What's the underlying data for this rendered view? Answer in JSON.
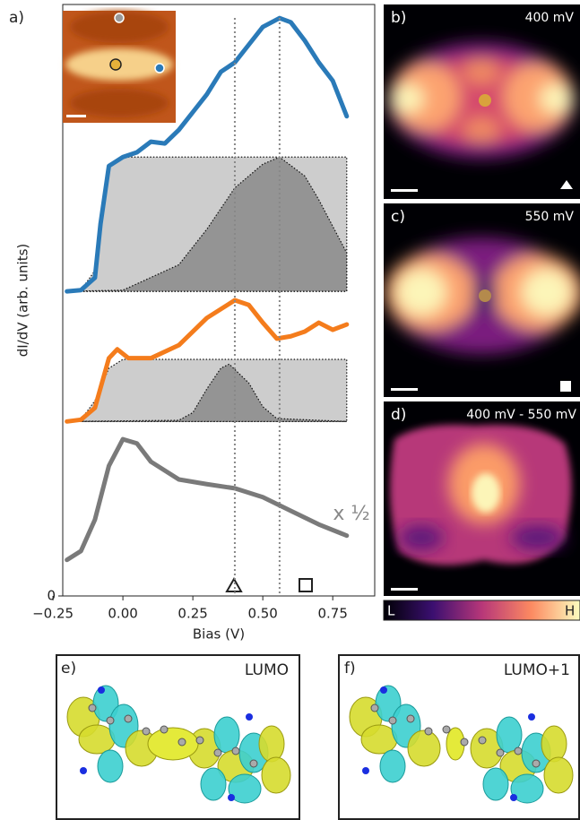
{
  "chart_data": {
    "type": "line",
    "panel_label": "a)",
    "x_label": "Bias (V)",
    "y_label": "dI/dV (arb. units)",
    "xlim": [
      -0.215,
      0.9
    ],
    "ylim": [
      0,
      10
    ],
    "xticks": [
      {
        "value": -0.25,
        "label": "−0.25"
      },
      {
        "value": 0,
        "label": "0.00"
      },
      {
        "value": 0.25,
        "label": "0.25"
      },
      {
        "value": 0.5,
        "label": "0.50"
      },
      {
        "value": 0.75,
        "label": "0.75"
      }
    ],
    "yticks": [
      0
    ],
    "series": [
      {
        "kind": "area",
        "color": "#c4c4c4",
        "x": [
          -0.2,
          -0.15,
          -0.1,
          -0.08,
          -0.05,
          0,
          0.8
        ],
        "values": [
          5.15,
          5.17,
          5.5,
          6.4,
          7.3,
          7.42,
          7.42
        ]
      },
      {
        "kind": "area",
        "color": "#8a8a8a",
        "x": [
          -0.2,
          0,
          0.2,
          0.3,
          0.4,
          0.5,
          0.56,
          0.65,
          0.7,
          0.8
        ],
        "values": [
          5.15,
          5.17,
          5.6,
          6.2,
          6.9,
          7.3,
          7.42,
          7.1,
          6.7,
          5.8
        ]
      },
      {
        "kind": "line",
        "color": "#2a7ab8",
        "x": [
          -0.2,
          -0.15,
          -0.1,
          -0.08,
          -0.05,
          0,
          0.05,
          0.1,
          0.15,
          0.2,
          0.25,
          0.3,
          0.35,
          0.4,
          0.45,
          0.5,
          0.56,
          0.6,
          0.65,
          0.7,
          0.75,
          0.8
        ],
        "values": [
          5.15,
          5.17,
          5.38,
          6.29,
          7.27,
          7.42,
          7.5,
          7.68,
          7.65,
          7.88,
          8.18,
          8.48,
          8.86,
          9.02,
          9.32,
          9.62,
          9.77,
          9.7,
          9.39,
          9.02,
          8.71,
          8.11
        ]
      },
      {
        "kind": "area",
        "color": "#c4c4c4",
        "x": [
          -0.2,
          -0.15,
          -0.1,
          -0.05,
          0,
          0.8
        ],
        "values": [
          2.95,
          2.98,
          3.3,
          3.85,
          4.0,
          4.0
        ]
      },
      {
        "kind": "area",
        "color": "#8a8a8a",
        "x": [
          -0.2,
          0.2,
          0.25,
          0.3,
          0.35,
          0.38,
          0.45,
          0.5,
          0.55,
          0.8
        ],
        "values": [
          2.95,
          2.97,
          3.1,
          3.5,
          3.85,
          3.92,
          3.6,
          3.2,
          3.0,
          2.95
        ]
      },
      {
        "kind": "line",
        "color": "#f47c1c",
        "x": [
          -0.2,
          -0.15,
          -0.1,
          -0.05,
          -0.02,
          0.02,
          0.1,
          0.2,
          0.3,
          0.4,
          0.45,
          0.5,
          0.55,
          0.6,
          0.65,
          0.7,
          0.75,
          0.8
        ],
        "values": [
          2.95,
          2.98,
          3.18,
          4.02,
          4.17,
          4.02,
          4.02,
          4.24,
          4.7,
          5.0,
          4.92,
          4.62,
          4.35,
          4.39,
          4.47,
          4.62,
          4.5,
          4.59
        ]
      },
      {
        "kind": "line",
        "color": "#7a7a7a",
        "x": [
          -0.2,
          -0.15,
          -0.1,
          -0.05,
          0,
          0.05,
          0.1,
          0.2,
          0.3,
          0.4,
          0.5,
          0.6,
          0.7,
          0.8
        ],
        "values": [
          0.61,
          0.76,
          1.29,
          2.2,
          2.65,
          2.58,
          2.27,
          1.97,
          1.89,
          1.82,
          1.67,
          1.44,
          1.21,
          1.02
        ]
      }
    ],
    "vlines": [
      0.4,
      0.56
    ],
    "annotation": "x ½"
  },
  "panels": {
    "b": {
      "label": "b)",
      "energy": "400 mV"
    },
    "c": {
      "label": "c)",
      "energy": "550 mV"
    },
    "d": {
      "label": "d)",
      "energy": "400 mV - 550 mV"
    },
    "colorbar": {
      "low": "L",
      "high": "H"
    },
    "e": {
      "label": "e)",
      "orbital": "LUMO"
    },
    "f": {
      "label": "f)",
      "orbital": "LUMO+1"
    }
  }
}
